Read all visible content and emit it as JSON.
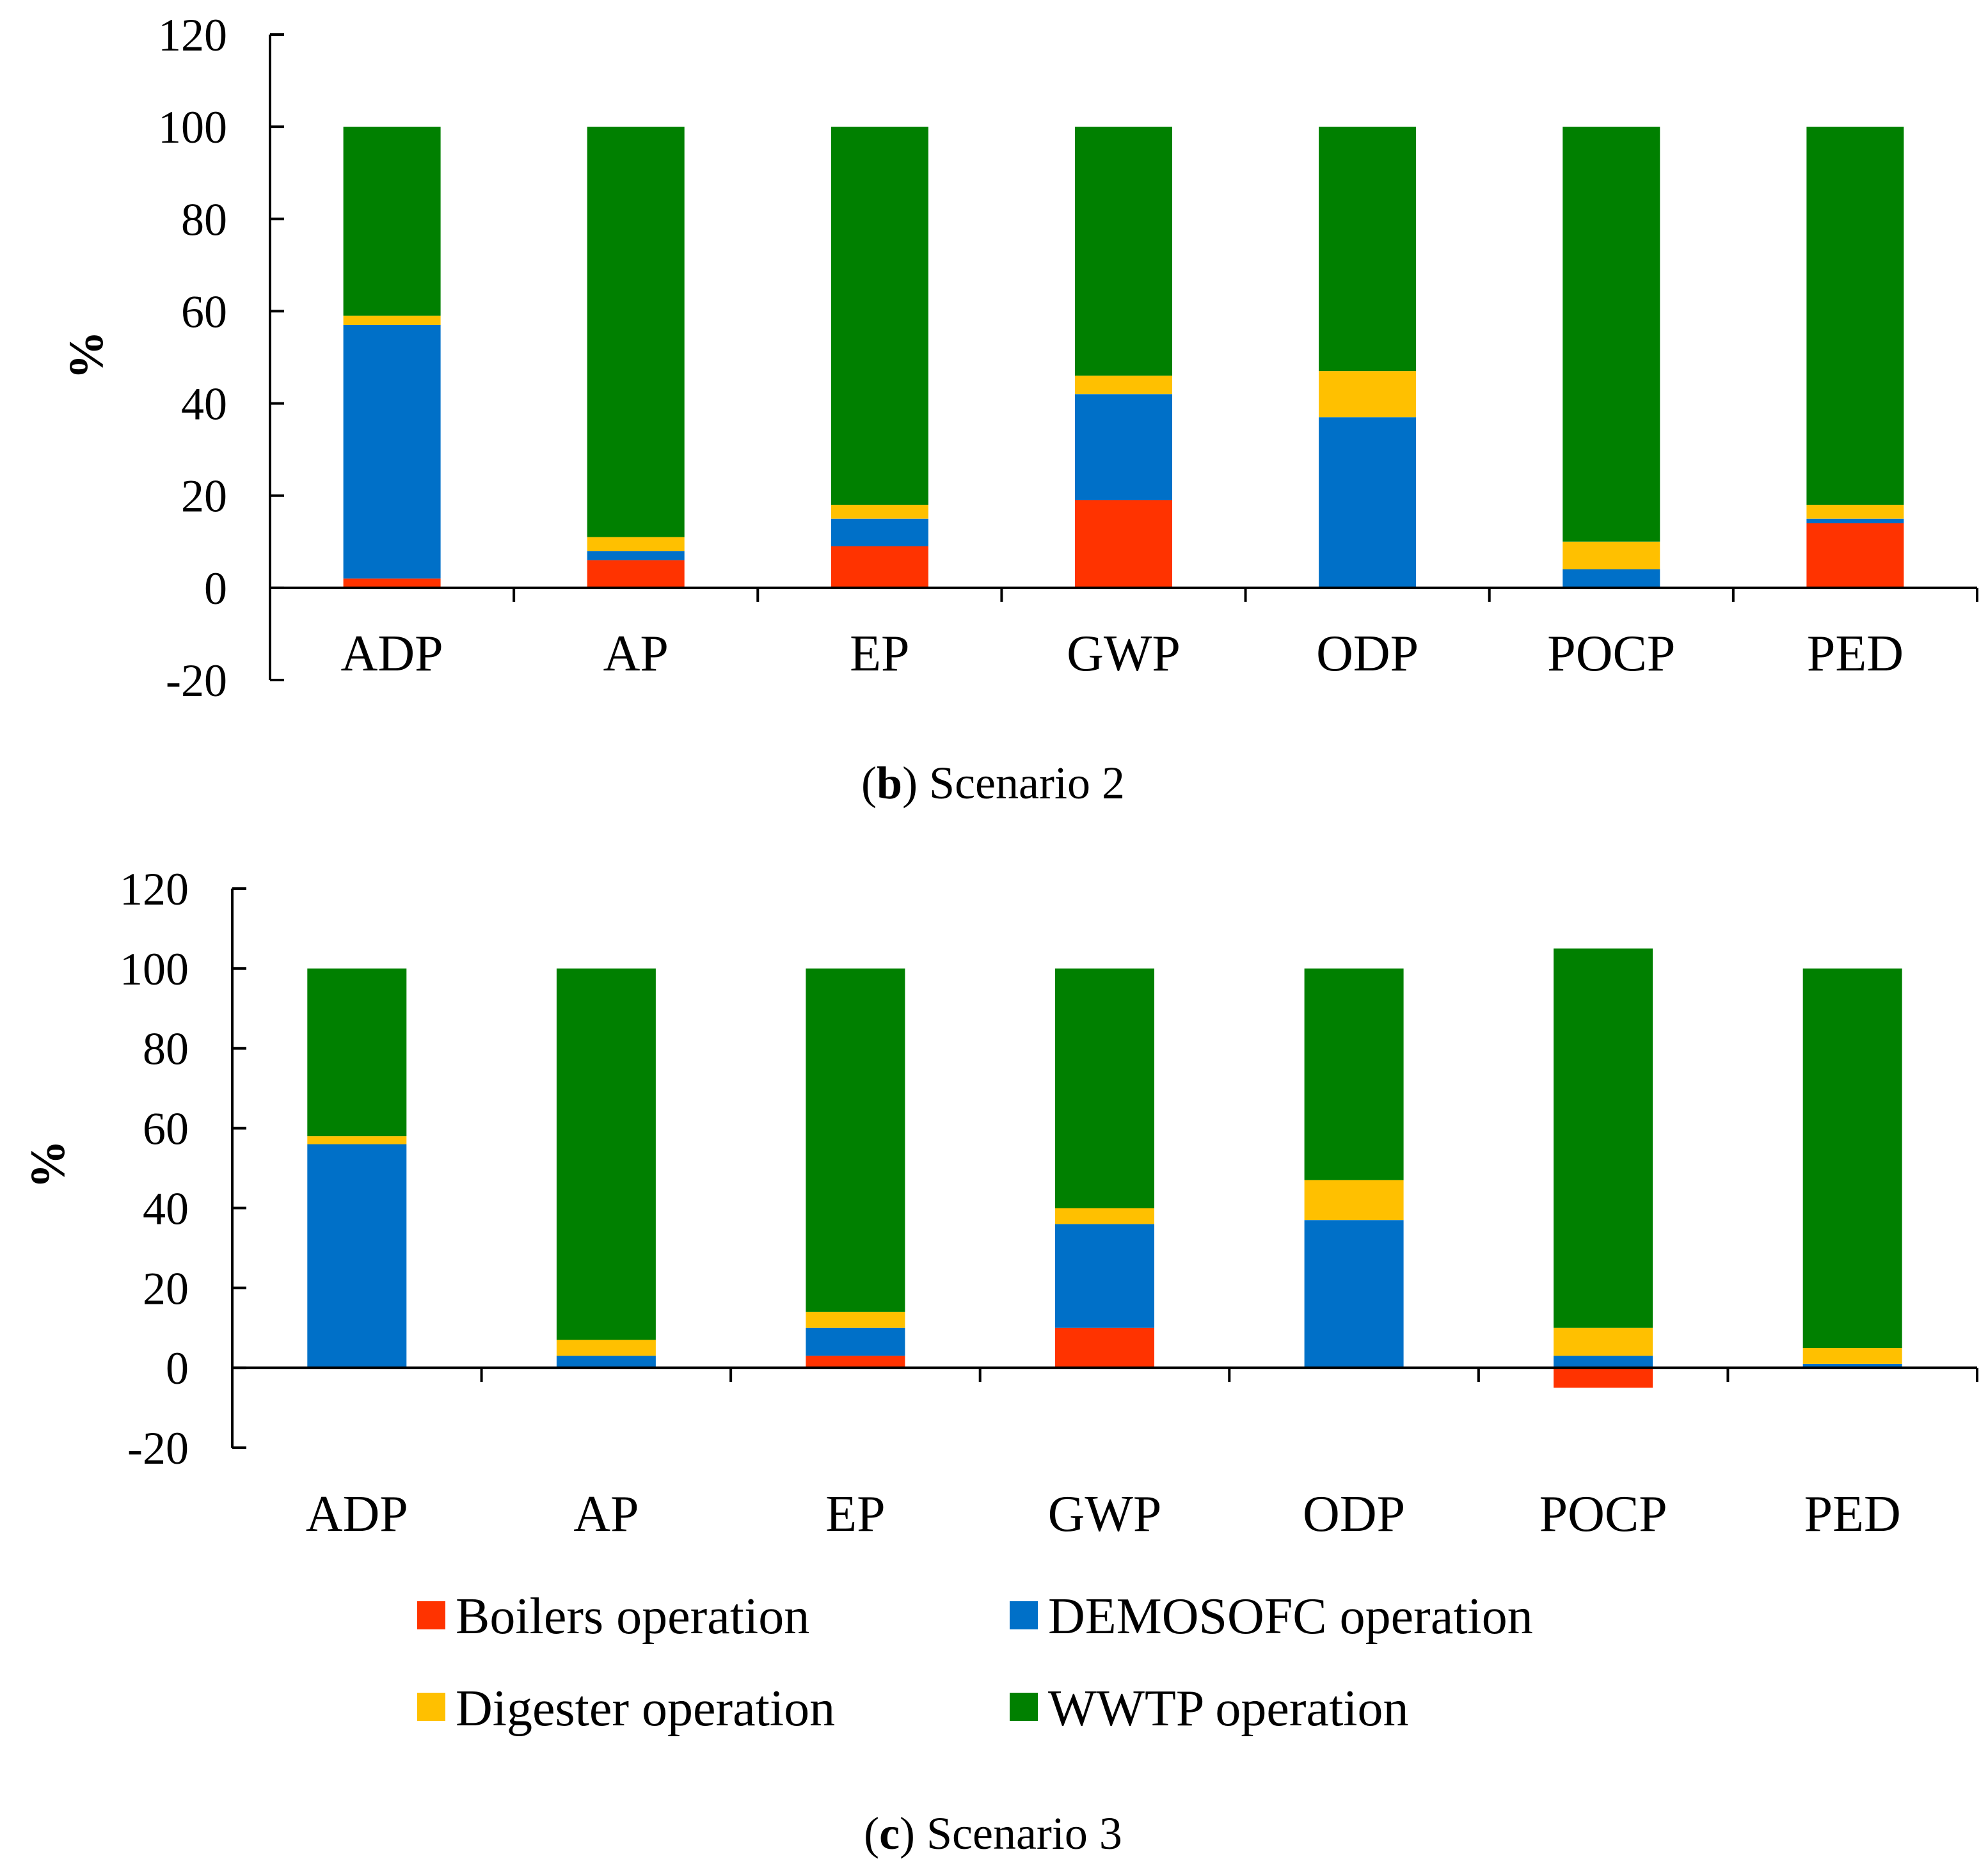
{
  "chart_data": [
    {
      "type": "bar",
      "stacked": true,
      "caption_letter": "b",
      "caption_title": "Scenario 2",
      "ylabel": "%",
      "xlabel": "",
      "ylim": [
        -20,
        120
      ],
      "yticks": [
        120,
        100,
        80,
        60,
        40,
        20,
        0,
        -20
      ],
      "categories": [
        "ADP",
        "AP",
        "EP",
        "GWP",
        "ODP",
        "POCP",
        "PED"
      ],
      "series": [
        {
          "name": "Boilers operation",
          "values": [
            2,
            6,
            9,
            19,
            0,
            0,
            14
          ]
        },
        {
          "name": "DEMOSOFC operation",
          "values": [
            55,
            2,
            6,
            23,
            37,
            4,
            1
          ]
        },
        {
          "name": "Digester operation",
          "values": [
            2,
            3,
            3,
            4,
            10,
            6,
            3
          ]
        },
        {
          "name": "WWTP operation",
          "values": [
            41,
            89,
            82,
            54,
            53,
            90,
            82
          ]
        }
      ]
    },
    {
      "type": "bar",
      "stacked": true,
      "caption_letter": "c",
      "caption_title": "Scenario 3",
      "ylabel": "%",
      "xlabel": "",
      "ylim": [
        -20,
        120
      ],
      "yticks": [
        120,
        100,
        80,
        60,
        40,
        20,
        0,
        -20
      ],
      "categories": [
        "ADP",
        "AP",
        "EP",
        "GWP",
        "ODP",
        "POCP",
        "PED"
      ],
      "series": [
        {
          "name": "Boilers operation",
          "values": [
            0,
            0,
            3,
            10,
            0,
            -5,
            0
          ]
        },
        {
          "name": "DEMOSOFC operation",
          "values": [
            56,
            3,
            7,
            26,
            37,
            3,
            1
          ]
        },
        {
          "name": "Digester operation",
          "values": [
            2,
            4,
            4,
            4,
            10,
            7,
            4
          ]
        },
        {
          "name": "WWTP operation",
          "values": [
            42,
            93,
            86,
            60,
            53,
            95,
            95
          ]
        }
      ]
    }
  ],
  "legend": {
    "items": [
      {
        "label": "Boilers operation",
        "color": "#FF3300"
      },
      {
        "label": "DEMOSOFC operation",
        "color": "#0070C8"
      },
      {
        "label": "Digester operation",
        "color": "#FFC000"
      },
      {
        "label": "WWTP operation",
        "color": "#008000"
      }
    ]
  },
  "colors": {
    "Boilers operation": "#FF3300",
    "DEMOSOFC operation": "#0070C8",
    "Digester operation": "#FFC000",
    "WWTP operation": "#008000"
  }
}
